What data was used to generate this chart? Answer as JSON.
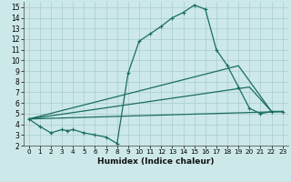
{
  "xlabel": "Humidex (Indice chaleur)",
  "background_color": "#cce8e8",
  "grid_color": "#aacccc",
  "line_color": "#1a6e5e",
  "xlim": [
    -0.5,
    23.5
  ],
  "ylim": [
    2,
    15.5
  ],
  "xticks": [
    0,
    1,
    2,
    3,
    4,
    5,
    6,
    7,
    8,
    9,
    10,
    11,
    12,
    13,
    14,
    15,
    16,
    17,
    18,
    19,
    20,
    21,
    22,
    23
  ],
  "yticks": [
    2,
    3,
    4,
    5,
    6,
    7,
    8,
    9,
    10,
    11,
    12,
    13,
    14,
    15
  ],
  "lines": [
    {
      "x": [
        0,
        1,
        2,
        3,
        3.5,
        4,
        5,
        6,
        7,
        8,
        9,
        10,
        11,
        12,
        13,
        14,
        15,
        16,
        17,
        18,
        19,
        20,
        21,
        22,
        23
      ],
      "y": [
        4.5,
        3.8,
        3.2,
        3.5,
        3.4,
        3.5,
        3.2,
        3.0,
        2.8,
        2.2,
        8.8,
        11.8,
        12.5,
        13.2,
        14.0,
        14.5,
        15.2,
        14.8,
        11.0,
        9.5,
        7.5,
        5.5,
        5.0,
        5.2,
        5.2
      ],
      "marker": true
    },
    {
      "x": [
        0,
        19,
        22,
        23
      ],
      "y": [
        4.5,
        9.5,
        5.2,
        5.2
      ],
      "marker": false
    },
    {
      "x": [
        0,
        23
      ],
      "y": [
        4.5,
        5.2
      ],
      "marker": false
    },
    {
      "x": [
        0,
        20,
        22,
        23
      ],
      "y": [
        4.5,
        7.5,
        5.2,
        5.2
      ],
      "marker": false
    }
  ]
}
